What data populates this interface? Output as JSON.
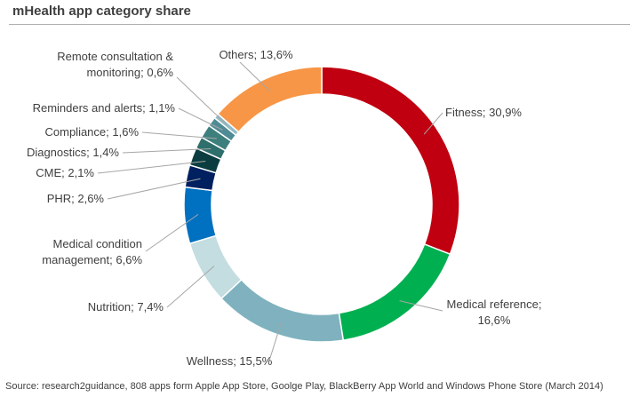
{
  "chart_data": {
    "type": "pie",
    "title": "mHealth app category share",
    "slices": [
      {
        "name": "Fitness",
        "value": 30.9,
        "color": "#c00010",
        "label": [
          "Fitness; 30,9%"
        ]
      },
      {
        "name": "Medical reference",
        "value": 16.6,
        "color": "#00b050",
        "label": [
          "Medical reference;",
          "16,6%"
        ]
      },
      {
        "name": "Wellness",
        "value": 15.5,
        "color": "#7fb2be",
        "label": [
          "Wellness; 15,5%"
        ]
      },
      {
        "name": "Nutrition",
        "value": 7.4,
        "color": "#c3dde0",
        "label": [
          "Nutrition; 7,4%"
        ]
      },
      {
        "name": "Medical condition management",
        "value": 6.6,
        "color": "#0070c0",
        "label": [
          "Medical condition",
          "management; 6,6%"
        ]
      },
      {
        "name": "PHR",
        "value": 2.6,
        "color": "#002060",
        "label": [
          "PHR; 2,6%"
        ]
      },
      {
        "name": "CME",
        "value": 2.1,
        "color": "#0b3d40",
        "label": [
          "CME; 2,1%"
        ]
      },
      {
        "name": "Diagnostics",
        "value": 1.4,
        "color": "#2e6e6b",
        "label": [
          "Diagnostics; 1,4%"
        ]
      },
      {
        "name": "Compliance",
        "value": 1.6,
        "color": "#3d7f7d",
        "label": [
          "Compliance; 1,6%"
        ]
      },
      {
        "name": "Reminders and alerts",
        "value": 1.1,
        "color": "#4f8b95",
        "label": [
          "Reminders and alerts; 1,1%"
        ]
      },
      {
        "name": "Remote consultation & monitoring",
        "value": 0.6,
        "color": "#93bcc6",
        "label": [
          "Remote consultation &",
          "monitoring; 0,6%"
        ]
      },
      {
        "name": "Others",
        "value": 13.6,
        "color": "#f79646",
        "label": [
          "Others; 13,6%"
        ]
      }
    ]
  },
  "source": "Source: research2guidance,  808 apps form Apple App Store, Goolge Play, BlackBerry App World and Windows Phone Store (March 2014)"
}
